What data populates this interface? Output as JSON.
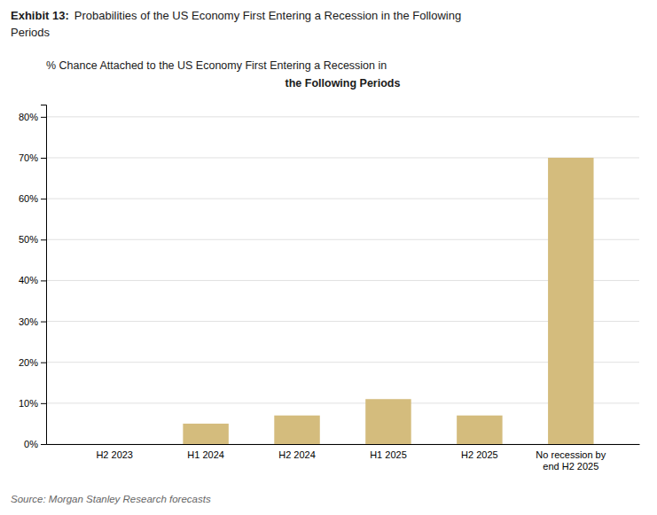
{
  "chart_data": {
    "type": "bar",
    "title": {
      "label": "Exhibit 13:",
      "lines": [
        "Probabilities of the US Economy First Entering a Recession in the Following",
        "Periods"
      ]
    },
    "subtitle": [
      "% Chance Attached to the US Economy First Entering a Recession in",
      "the Following Periods"
    ],
    "annotations": [
      "Source: Morgan Stanley Research forecasts"
    ],
    "categories": [
      "H2 2023",
      "H1 2024",
      "H2 2024",
      "H1 2025",
      "H2 2025",
      "No recession by\nend H2 2025"
    ],
    "values": [
      0,
      5,
      7,
      11,
      7,
      70
    ],
    "color": "#D4BC7D",
    "ylim": [
      0,
      83
    ],
    "yticks": [
      {
        "value": 0,
        "label": "0%"
      },
      {
        "value": 10,
        "label": "10%"
      },
      {
        "value": 20,
        "label": "20%"
      },
      {
        "value": 30,
        "label": "30%"
      },
      {
        "value": 40,
        "label": "40%"
      },
      {
        "value": 50,
        "label": "50%"
      },
      {
        "value": 60,
        "label": "60%"
      },
      {
        "value": 70,
        "label": "70%"
      },
      {
        "value": 80,
        "label": "80%"
      }
    ],
    "grid": true
  }
}
